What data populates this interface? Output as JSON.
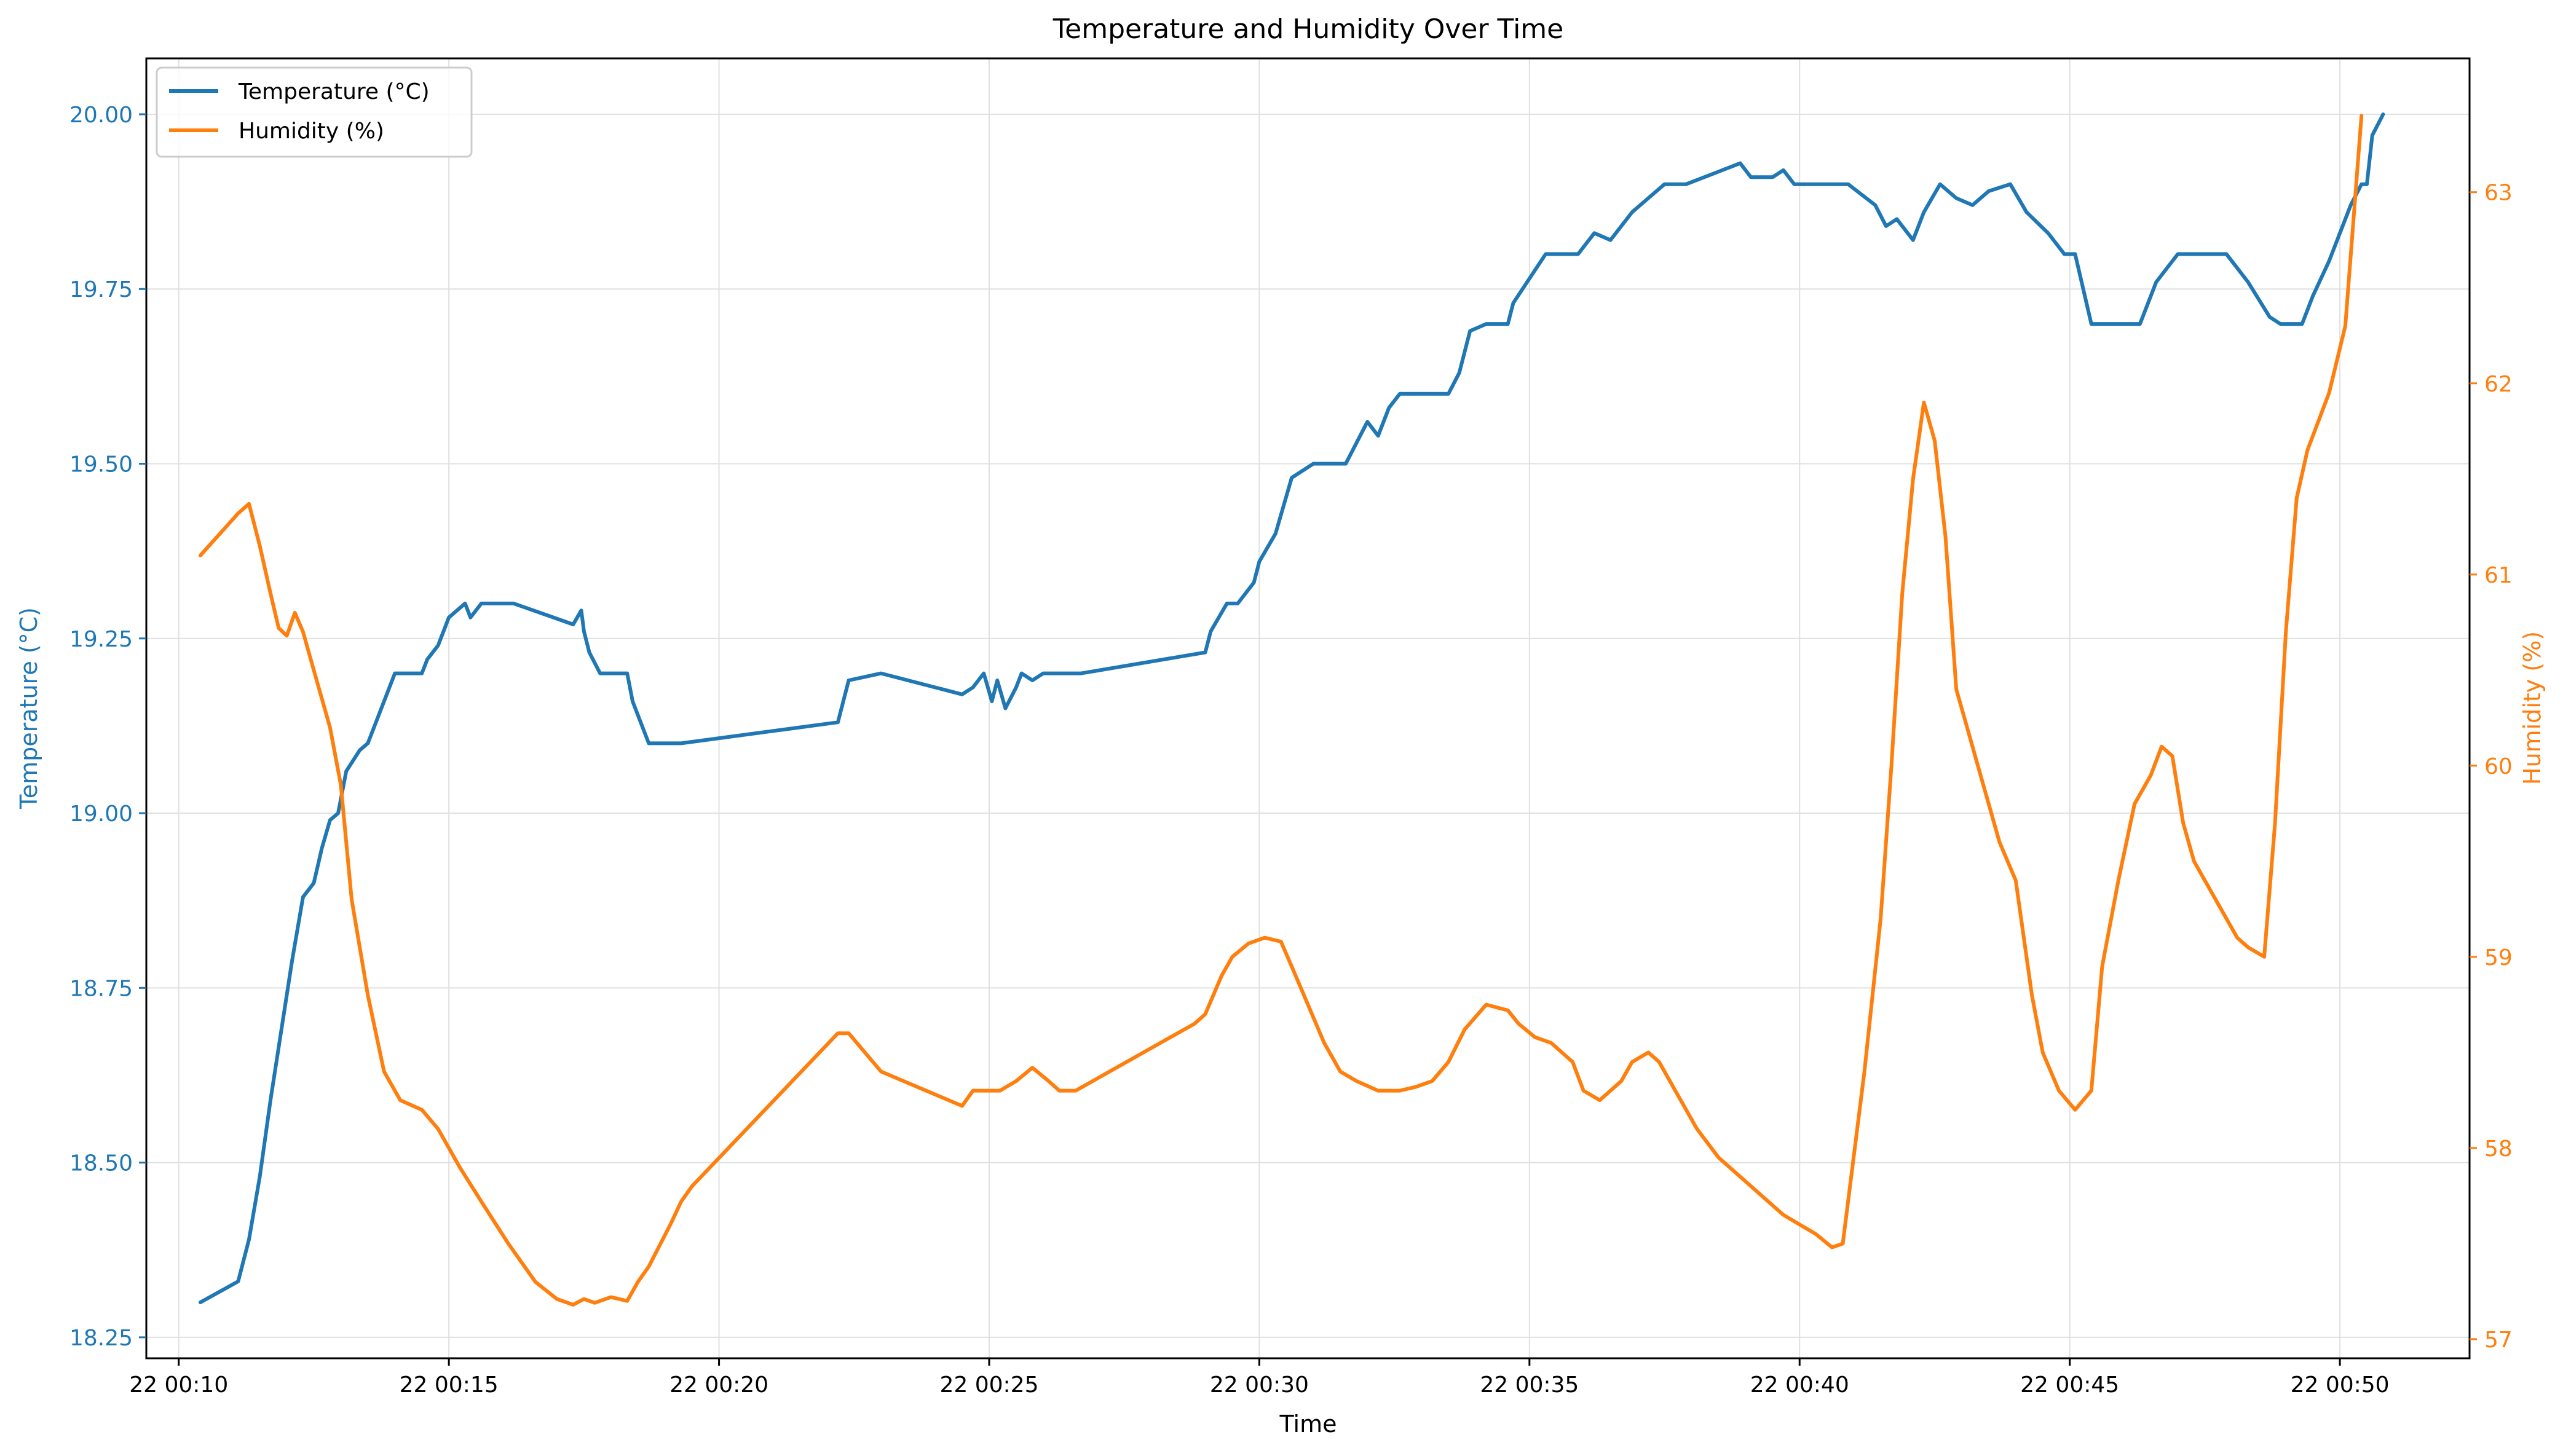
{
  "chart_data": {
    "type": "line",
    "title": "Temperature and Humidity Over Time",
    "xlabel": "Time",
    "ylabel_left": "Temperature (°C)",
    "ylabel_right": "Humidity (%)",
    "x_ticks": [
      "22 00:10",
      "22 00:15",
      "22 00:20",
      "22 00:25",
      "22 00:30",
      "22 00:35",
      "22 00:40",
      "22 00:45",
      "22 00:50"
    ],
    "x_tick_minutes": [
      10,
      15,
      20,
      25,
      30,
      35,
      40,
      45,
      50
    ],
    "xlim_minutes": [
      9.4,
      52.4
    ],
    "ylim_left": [
      18.22,
      20.08
    ],
    "ylim_right": [
      56.9,
      63.7
    ],
    "y_ticks_left": [
      "18.25",
      "18.50",
      "18.75",
      "19.00",
      "19.25",
      "19.50",
      "19.75",
      "20.00"
    ],
    "y_ticks_right": [
      "57",
      "58",
      "59",
      "60",
      "61",
      "62",
      "63"
    ],
    "grid": true,
    "legend_position": "upper-left",
    "colors": {
      "temperature": "#1f77b4",
      "humidity": "#ff7f0e",
      "axis": "#000000",
      "grid": "#e0e0e0"
    },
    "series": [
      {
        "name": "Temperature (°C)",
        "axis": "left",
        "x": [
          10.4,
          11.1,
          11.3,
          11.5,
          11.7,
          11.9,
          12.1,
          12.3,
          12.5,
          12.65,
          12.8,
          12.95,
          13.1,
          13.35,
          13.5,
          13.7,
          14.0,
          14.5,
          14.6,
          14.8,
          15.0,
          15.3,
          15.4,
          15.6,
          16.2,
          17.3,
          17.45,
          17.5,
          17.6,
          17.8,
          18.3,
          18.4,
          18.7,
          19.3,
          22.2,
          22.4,
          23.0,
          24.5,
          24.7,
          24.9,
          25.05,
          25.15,
          25.3,
          25.5,
          25.6,
          25.8,
          26.0,
          26.7,
          29.0,
          29.1,
          29.4,
          29.6,
          29.9,
          30.0,
          30.3,
          30.6,
          31.0,
          31.6,
          31.8,
          32.0,
          32.2,
          32.4,
          32.6,
          33.0,
          33.5,
          33.7,
          33.9,
          34.2,
          34.6,
          34.7,
          35.3,
          35.6,
          35.9,
          36.2,
          36.5,
          36.9,
          37.2,
          37.5,
          37.9,
          38.9,
          39.1,
          39.5,
          39.7,
          39.9,
          40.9,
          41.4,
          41.6,
          41.8,
          42.1,
          42.3,
          42.6,
          42.9,
          43.2,
          43.5,
          43.9,
          44.2,
          44.6,
          44.9,
          45.1,
          45.4,
          46.3,
          46.6,
          47.0,
          47.9,
          48.1,
          48.3,
          48.7,
          48.9,
          49.3,
          49.5,
          49.8,
          50.2,
          50.4,
          50.5
        ],
        "y": [
          18.3,
          18.33,
          18.39,
          18.48,
          18.59,
          18.69,
          18.79,
          18.88,
          18.9,
          18.95,
          18.99,
          19.0,
          19.06,
          19.09,
          19.1,
          19.14,
          19.2,
          19.2,
          19.22,
          19.24,
          19.28,
          19.3,
          19.28,
          19.3,
          19.3,
          19.27,
          19.29,
          19.26,
          19.23,
          19.2,
          19.2,
          19.16,
          19.1,
          19.1,
          19.13,
          19.19,
          19.2,
          19.17,
          19.18,
          19.2,
          19.16,
          19.19,
          19.15,
          19.18,
          19.2,
          19.19,
          19.2,
          19.2,
          19.23,
          19.26,
          19.3,
          19.3,
          19.33,
          19.36,
          19.4,
          19.48,
          19.5,
          19.5,
          19.53,
          19.56,
          19.54,
          19.58,
          19.6,
          19.6,
          19.6,
          19.63,
          19.69,
          19.7,
          19.7,
          19.73,
          19.8,
          19.8,
          19.8,
          19.83,
          19.82,
          19.86,
          19.88,
          19.9,
          19.9,
          19.93,
          19.91,
          19.91,
          19.92,
          19.9,
          19.9,
          19.87,
          19.84,
          19.85,
          19.82,
          19.86,
          19.9,
          19.88,
          19.87,
          19.89,
          19.9,
          19.86,
          19.83,
          19.8,
          19.8,
          19.7,
          19.7,
          19.76,
          19.8,
          19.8,
          19.78,
          19.76,
          19.71,
          19.7,
          19.7,
          19.74,
          19.79,
          19.87,
          19.9,
          19.9
        ],
        "extra_x": [
          50.6,
          50.8
        ],
        "extra_y": [
          19.97,
          20.0
        ]
      },
      {
        "name": "Humidity (%)",
        "axis": "right",
        "x": [
          10.4,
          11.1,
          11.3,
          11.5,
          11.7,
          11.85,
          12.0,
          12.15,
          12.3,
          12.5,
          12.65,
          12.8,
          13.0,
          13.2,
          13.5,
          13.8,
          14.1,
          14.5,
          14.8,
          15.2,
          15.6,
          16.1,
          16.6,
          17.0,
          17.3,
          17.5,
          17.7,
          18.0,
          18.3,
          18.5,
          18.7,
          19.1,
          19.3,
          19.5,
          22.2,
          22.4,
          22.7,
          23.0,
          24.5,
          24.7,
          25.2,
          25.5,
          25.8,
          26.1,
          26.3,
          26.6,
          28.8,
          29.0,
          29.3,
          29.5,
          29.8,
          30.1,
          30.4,
          30.6,
          30.9,
          31.2,
          31.5,
          31.8,
          32.2,
          32.6,
          32.9,
          33.2,
          33.5,
          33.8,
          34.2,
          34.6,
          34.8,
          35.1,
          35.4,
          35.8,
          36.0,
          36.3,
          36.5,
          36.7,
          36.9,
          37.2,
          37.4,
          37.7,
          38.1,
          38.5,
          38.9,
          39.3,
          39.7,
          40.0,
          40.3,
          40.6,
          40.8,
          41.2,
          41.5,
          41.7,
          41.9,
          42.1,
          42.3,
          42.5,
          42.7,
          42.9,
          43.1,
          43.4,
          43.7,
          44.0,
          44.3,
          44.5,
          44.8,
          45.1,
          45.4,
          45.6,
          45.9,
          46.2,
          46.5,
          46.7,
          46.9,
          47.1,
          47.3,
          47.7,
          48.1,
          48.3,
          48.6,
          48.8,
          49.0,
          49.2,
          49.4,
          49.6,
          49.8,
          50.1,
          50.4
        ],
        "y": [
          61.1,
          61.32,
          61.37,
          61.15,
          60.9,
          60.72,
          60.68,
          60.8,
          60.7,
          60.5,
          60.35,
          60.2,
          59.9,
          59.3,
          58.8,
          58.4,
          58.25,
          58.2,
          58.1,
          57.9,
          57.72,
          57.5,
          57.3,
          57.21,
          57.18,
          57.21,
          57.19,
          57.22,
          57.2,
          57.3,
          57.38,
          57.6,
          57.72,
          57.8,
          58.6,
          58.6,
          58.5,
          58.4,
          58.22,
          58.3,
          58.3,
          58.35,
          58.42,
          58.35,
          58.3,
          58.3,
          58.65,
          58.7,
          58.9,
          59.0,
          59.07,
          59.1,
          59.08,
          58.95,
          58.75,
          58.55,
          58.4,
          58.35,
          58.3,
          58.3,
          58.32,
          58.35,
          58.45,
          58.62,
          58.75,
          58.72,
          58.65,
          58.58,
          58.55,
          58.45,
          58.3,
          58.25,
          58.3,
          58.35,
          58.45,
          58.5,
          58.45,
          58.3,
          58.1,
          57.95,
          57.85,
          57.75,
          57.65,
          57.6,
          57.55,
          57.48,
          57.5,
          58.4,
          59.2,
          60.0,
          60.9,
          61.5,
          61.9,
          61.7,
          61.2,
          60.4,
          60.2,
          59.9,
          59.6,
          59.4,
          58.8,
          58.5,
          58.3,
          58.2,
          58.3,
          58.95,
          59.4,
          59.8,
          59.95,
          60.1,
          60.05,
          59.7,
          59.5,
          59.3,
          59.1,
          59.05,
          59.0,
          59.7,
          60.7,
          61.4,
          61.65,
          61.8,
          61.95,
          62.3,
          63.4
        ]
      }
    ]
  }
}
